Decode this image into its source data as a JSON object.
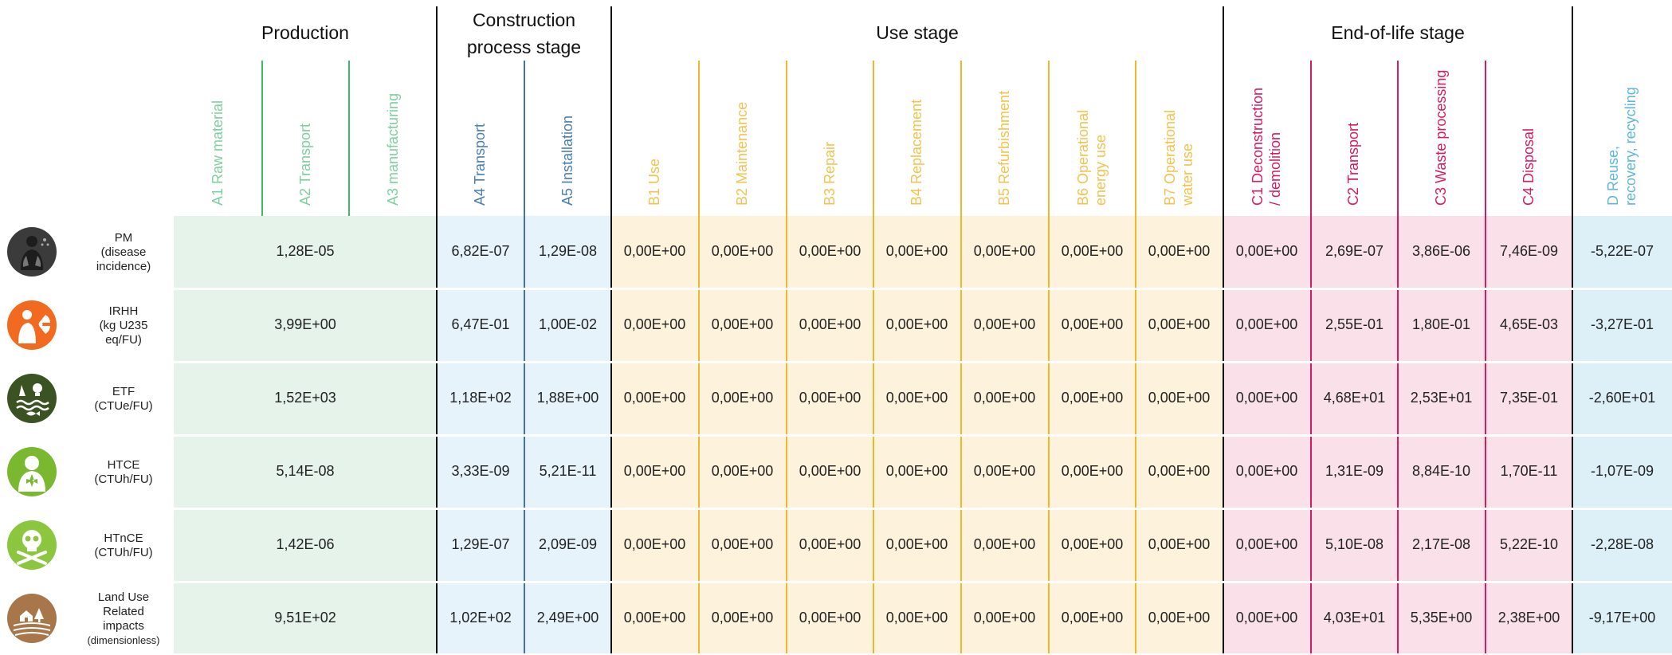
{
  "groups": {
    "production": "Production",
    "construction_line1": "Construction",
    "construction_line2": "process stage",
    "use": "Use stage",
    "eol": "End-of-life stage"
  },
  "columns": [
    {
      "id": "A1",
      "label": "A1 Raw material",
      "color": "#7fcf9f"
    },
    {
      "id": "A2",
      "label": "A2 Transport",
      "color": "#7fcf9f"
    },
    {
      "id": "A3",
      "label": "A3 manufacturing",
      "color": "#7fcf9f"
    },
    {
      "id": "A4",
      "label": "A4 Transport",
      "color": "#4a7fb5"
    },
    {
      "id": "A5",
      "label": "A5 Installation",
      "color": "#4a7fb5"
    },
    {
      "id": "B1",
      "label": "B1 Use",
      "color": "#f2c34f"
    },
    {
      "id": "B2",
      "label": "B2 Maintenance",
      "color": "#f2c34f"
    },
    {
      "id": "B3",
      "label": "B3 Repair",
      "color": "#f2c34f"
    },
    {
      "id": "B4",
      "label": "B4 Replacement",
      "color": "#f2c34f"
    },
    {
      "id": "B5",
      "label": "B5 Refurbishment",
      "color": "#f2c34f"
    },
    {
      "id": "B6",
      "label": "B6 Operational energy use",
      "color": "#f2c34f"
    },
    {
      "id": "B7",
      "label": "B7 Operational water use",
      "color": "#f2c34f"
    },
    {
      "id": "C1",
      "label": "C1 Deconstruction / demolition",
      "color": "#d81b60"
    },
    {
      "id": "C2",
      "label": "C2 Transport",
      "color": "#d81b60"
    },
    {
      "id": "C3",
      "label": "C3 Waste processing",
      "color": "#d81b60"
    },
    {
      "id": "C4",
      "label": "C4 Disposal",
      "color": "#d81b60"
    },
    {
      "id": "D",
      "label": "D Reuse, recovery, recycling",
      "color": "#5fb7da"
    }
  ],
  "rows": [
    {
      "icon": "lungs-icon",
      "name": "PM",
      "unit_lines": [
        "(disease",
        "incidence)"
      ],
      "a13": "1,28E-05",
      "a4": "6,82E-07",
      "a5": "1,29E-08",
      "b": [
        "0,00E+00",
        "0,00E+00",
        "0,00E+00",
        "0,00E+00",
        "0,00E+00",
        "0,00E+00",
        "0,00E+00"
      ],
      "c": [
        "0,00E+00",
        "2,69E-07",
        "3,86E-06",
        "7,46E-09"
      ],
      "d": "-5,22E-07"
    },
    {
      "icon": "radiation-icon",
      "name": "IRHH",
      "unit_lines": [
        "(kg U235",
        "eq/FU)"
      ],
      "a13": "3,99E+00",
      "a4": "6,47E-01",
      "a5": "1,00E-02",
      "b": [
        "0,00E+00",
        "0,00E+00",
        "0,00E+00",
        "0,00E+00",
        "0,00E+00",
        "0,00E+00",
        "0,00E+00"
      ],
      "c": [
        "0,00E+00",
        "2,55E-01",
        "1,80E-01",
        "4,65E-03"
      ],
      "d": "-3,27E-01"
    },
    {
      "icon": "ecotoxicity-icon",
      "name": "ETF",
      "unit_lines": [
        "(CTUe/FU)"
      ],
      "a13": "1,52E+03",
      "a4": "1,18E+02",
      "a5": "1,88E+00",
      "b": [
        "0,00E+00",
        "0,00E+00",
        "0,00E+00",
        "0,00E+00",
        "0,00E+00",
        "0,00E+00",
        "0,00E+00"
      ],
      "c": [
        "0,00E+00",
        "4,68E+01",
        "2,53E+01",
        "7,35E-01"
      ],
      "d": "-2,60E+01"
    },
    {
      "icon": "human-toxicity-cancer-icon",
      "name": "HTCE",
      "unit_lines": [
        "(CTUh/FU)"
      ],
      "a13": "5,14E-08",
      "a4": "3,33E-09",
      "a5": "5,21E-11",
      "b": [
        "0,00E+00",
        "0,00E+00",
        "0,00E+00",
        "0,00E+00",
        "0,00E+00",
        "0,00E+00",
        "0,00E+00"
      ],
      "c": [
        "0,00E+00",
        "1,31E-09",
        "8,84E-10",
        "1,70E-11"
      ],
      "d": "-1,07E-09"
    },
    {
      "icon": "skull-crossbones-icon",
      "name": "HTnCE",
      "unit_lines": [
        "(CTUh/FU)"
      ],
      "a13": "1,42E-06",
      "a4": "1,29E-07",
      "a5": "2,09E-09",
      "b": [
        "0,00E+00",
        "0,00E+00",
        "0,00E+00",
        "0,00E+00",
        "0,00E+00",
        "0,00E+00",
        "0,00E+00"
      ],
      "c": [
        "0,00E+00",
        "5,10E-08",
        "2,17E-08",
        "5,22E-10"
      ],
      "d": "-2,28E-08"
    },
    {
      "icon": "land-use-icon",
      "name": "Land Use",
      "unit_lines": [
        "Related",
        "impacts"
      ],
      "small": "(dimensionless)",
      "a13": "9,51E+02",
      "a4": "1,02E+02",
      "a5": "2,49E+00",
      "b": [
        "0,00E+00",
        "0,00E+00",
        "0,00E+00",
        "0,00E+00",
        "0,00E+00",
        "0,00E+00",
        "0,00E+00"
      ],
      "c": [
        "0,00E+00",
        "4,03E+01",
        "5,35E+00",
        "2,38E+00"
      ],
      "d": "-9,17E+00"
    }
  ],
  "colors": {
    "production_bg": "#e6f3ea",
    "construction_bg": "#e6f3fb",
    "use_bg": "#fdf2dc",
    "eol_bg": "#fae0e8",
    "d_bg": "#ddf0f8"
  }
}
